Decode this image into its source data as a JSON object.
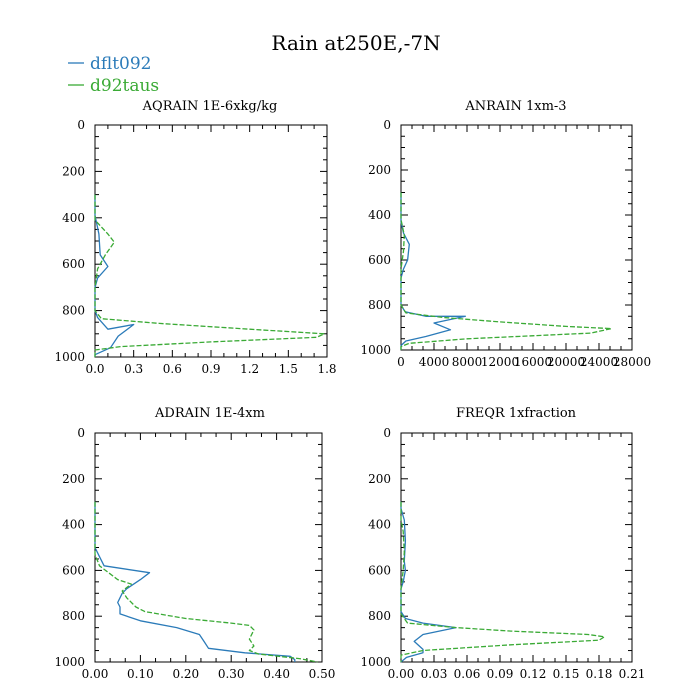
{
  "title": "Rain at250E,-7N",
  "legend": [
    {
      "name": "dflt092",
      "color": "#2b7bb9",
      "dash": "solid"
    },
    {
      "name": "d92taus",
      "color": "#3aaa35",
      "dash": "dashed"
    }
  ],
  "chart_data": [
    {
      "type": "line",
      "title": "AQRAIN  1E-6xkg/kg",
      "xlim": [
        0,
        1.8
      ],
      "ylim": [
        0,
        1000
      ],
      "y_inverted": true,
      "xticks": [
        "0.0",
        "0.3",
        "0.6",
        "0.9",
        "1.2",
        "1.5",
        "1.8"
      ],
      "yticks": [
        "0",
        "200",
        "400",
        "600",
        "800",
        "1000"
      ],
      "series": [
        {
          "name": "dflt092",
          "points": [
            [
              0,
              300
            ],
            [
              0,
              390
            ],
            [
              0.03,
              470
            ],
            [
              0.04,
              560
            ],
            [
              0.1,
              610
            ],
            [
              0.02,
              660
            ],
            [
              0,
              700
            ],
            [
              0,
              800
            ],
            [
              0.02,
              830
            ],
            [
              0.1,
              880
            ],
            [
              0.3,
              860
            ],
            [
              0.18,
              910
            ],
            [
              0.12,
              960
            ],
            [
              0,
              990
            ],
            [
              0,
              1000
            ]
          ]
        },
        {
          "name": "d92taus",
          "points": [
            [
              0,
              300
            ],
            [
              0,
              410
            ],
            [
              0.1,
              470
            ],
            [
              0.15,
              505
            ],
            [
              0.08,
              560
            ],
            [
              0.02,
              620
            ],
            [
              0,
              700
            ],
            [
              0,
              800
            ],
            [
              0.05,
              835
            ],
            [
              0.5,
              855
            ],
            [
              1.2,
              880
            ],
            [
              1.78,
              900
            ],
            [
              1.72,
              915
            ],
            [
              0.9,
              935
            ],
            [
              0.2,
              955
            ],
            [
              0,
              970
            ],
            [
              0,
              1000
            ]
          ]
        }
      ]
    },
    {
      "type": "line",
      "title": "ANRAIN  1xm-3",
      "xlim": [
        0,
        28000
      ],
      "ylim": [
        0,
        1000
      ],
      "y_inverted": true,
      "xticks": [
        "0",
        "4000",
        "8000",
        "12000",
        "16000",
        "20000",
        "24000",
        "28000"
      ],
      "yticks": [
        "0",
        "200",
        "400",
        "600",
        "800",
        "1000"
      ],
      "series": [
        {
          "name": "dflt092",
          "points": [
            [
              0,
              300
            ],
            [
              0,
              430
            ],
            [
              300,
              480
            ],
            [
              1000,
              530
            ],
            [
              800,
              600
            ],
            [
              300,
              640
            ],
            [
              0,
              680
            ],
            [
              0,
              800
            ],
            [
              500,
              830
            ],
            [
              3000,
              850
            ],
            [
              7800,
              850
            ],
            [
              4000,
              880
            ],
            [
              6000,
              910
            ],
            [
              3000,
              940
            ],
            [
              600,
              960
            ],
            [
              0,
              980
            ],
            [
              0,
              1000
            ]
          ]
        },
        {
          "name": "d92taus",
          "points": [
            [
              0,
              300
            ],
            [
              0,
              420
            ],
            [
              400,
              490
            ],
            [
              300,
              560
            ],
            [
              0,
              640
            ],
            [
              0,
              800
            ],
            [
              600,
              835
            ],
            [
              5000,
              855
            ],
            [
              12000,
              875
            ],
            [
              20000,
              895
            ],
            [
              25500,
              905
            ],
            [
              23000,
              925
            ],
            [
              8000,
              950
            ],
            [
              1000,
              970
            ],
            [
              0,
              985
            ],
            [
              0,
              1000
            ]
          ]
        }
      ]
    },
    {
      "type": "line",
      "title": "ADRAIN  1E-4xm",
      "xlim": [
        0,
        0.5
      ],
      "ylim": [
        0,
        1000
      ],
      "y_inverted": true,
      "xticks": [
        "0.00",
        "0.10",
        "0.20",
        "0.30",
        "0.40",
        "0.50"
      ],
      "yticks": [
        "0",
        "200",
        "400",
        "600",
        "800",
        "1000"
      ],
      "series": [
        {
          "name": "dflt092",
          "points": [
            [
              0,
              300
            ],
            [
              0,
              500
            ],
            [
              0.01,
              540
            ],
            [
              0.02,
              580
            ],
            [
              0.12,
              610
            ],
            [
              0.1,
              640
            ],
            [
              0.07,
              680
            ],
            [
              0.06,
              700
            ],
            [
              0.05,
              740
            ],
            [
              0.055,
              760
            ],
            [
              0.055,
              790
            ],
            [
              0.1,
              820
            ],
            [
              0.18,
              850
            ],
            [
              0.23,
              880
            ],
            [
              0.24,
              910
            ],
            [
              0.25,
              940
            ],
            [
              0.33,
              960
            ],
            [
              0.43,
              975
            ],
            [
              0.44,
              990
            ],
            [
              0.44,
              1000
            ]
          ]
        },
        {
          "name": "d92taus",
          "points": [
            [
              0,
              300
            ],
            [
              0,
              530
            ],
            [
              0.01,
              580
            ],
            [
              0.03,
              610
            ],
            [
              0.05,
              640
            ],
            [
              0.08,
              660
            ],
            [
              0.06,
              690
            ],
            [
              0.07,
              720
            ],
            [
              0.09,
              760
            ],
            [
              0.11,
              780
            ],
            [
              0.2,
              810
            ],
            [
              0.3,
              830
            ],
            [
              0.34,
              840
            ],
            [
              0.35,
              860
            ],
            [
              0.34,
              900
            ],
            [
              0.35,
              930
            ],
            [
              0.34,
              950
            ],
            [
              0.36,
              965
            ],
            [
              0.45,
              985
            ],
            [
              0.49,
              1000
            ]
          ]
        }
      ]
    },
    {
      "type": "line",
      "title": "FREQR  1xfraction",
      "xlim": [
        0,
        0.21
      ],
      "ylim": [
        0,
        1000
      ],
      "y_inverted": true,
      "xticks": [
        "0.00",
        "0.03",
        "0.06",
        "0.09",
        "0.12",
        "0.15",
        "0.18",
        "0.21"
      ],
      "yticks": [
        "0",
        "200",
        "400",
        "600",
        "800",
        "1000"
      ],
      "series": [
        {
          "name": "dflt092",
          "points": [
            [
              0,
              300
            ],
            [
              0,
              330
            ],
            [
              0.003,
              380
            ],
            [
              0.004,
              470
            ],
            [
              0.003,
              560
            ],
            [
              0.004,
              600
            ],
            [
              0.002,
              650
            ],
            [
              0,
              680
            ],
            [
              0,
              780
            ],
            [
              0.004,
              810
            ],
            [
              0.02,
              830
            ],
            [
              0.05,
              850
            ],
            [
              0.02,
              880
            ],
            [
              0.012,
              910
            ],
            [
              0.02,
              945
            ],
            [
              0.02,
              960
            ],
            [
              0.005,
              980
            ],
            [
              0,
              1000
            ]
          ]
        },
        {
          "name": "d92taus",
          "points": [
            [
              0,
              300
            ],
            [
              0,
              380
            ],
            [
              0.002,
              430
            ],
            [
              0.003,
              520
            ],
            [
              0.002,
              600
            ],
            [
              0,
              680
            ],
            [
              0,
              790
            ],
            [
              0.006,
              830
            ],
            [
              0.05,
              850
            ],
            [
              0.1,
              865
            ],
            [
              0.17,
              880
            ],
            [
              0.185,
              890
            ],
            [
              0.18,
              905
            ],
            [
              0.1,
              925
            ],
            [
              0.02,
              950
            ],
            [
              0,
              970
            ],
            [
              0,
              1000
            ]
          ]
        }
      ]
    }
  ]
}
